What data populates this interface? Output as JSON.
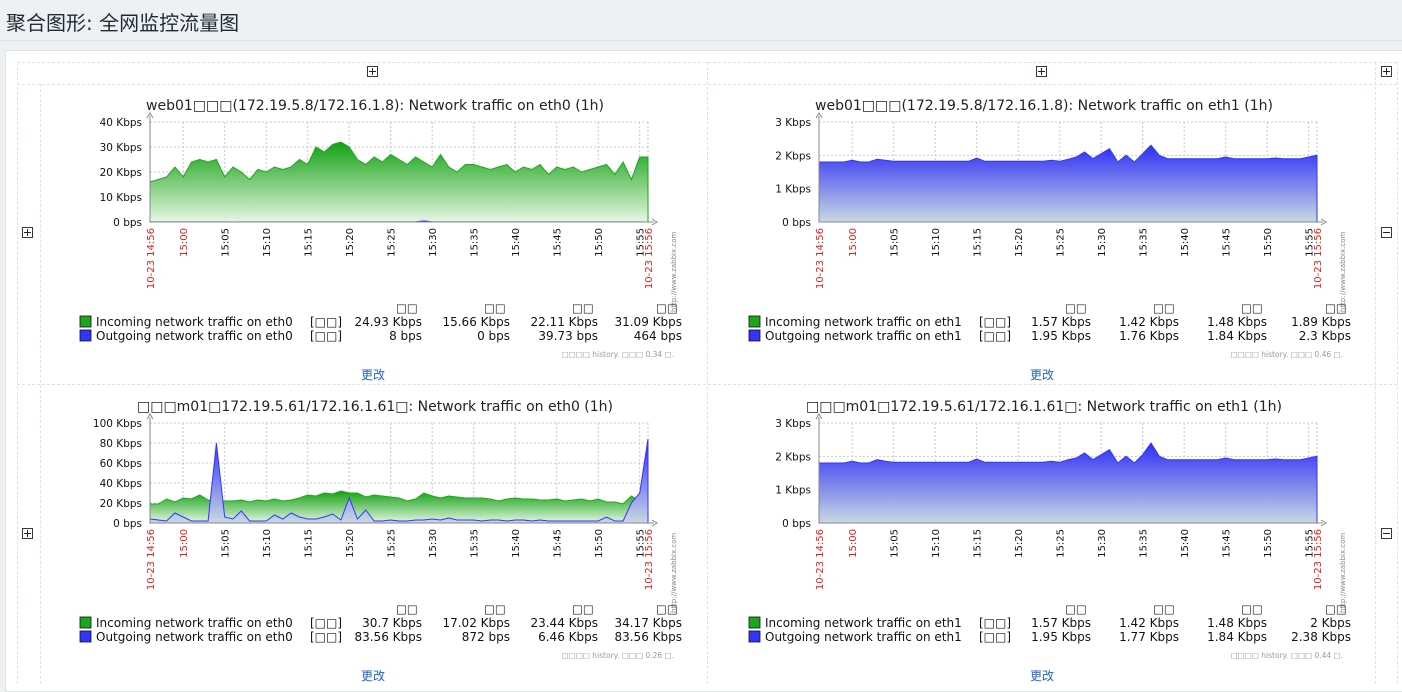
{
  "page": {
    "title": "聚合图形: 全网监控流量图"
  },
  "graphs": [
    {
      "title": "web01□□□(172.19.5.8/172.16.1.8): Network traffic on eth0 (1h)",
      "y_ticks": [
        "40 Kbps",
        "30 Kbps",
        "20 Kbps",
        "10 Kbps",
        "0 bps"
      ],
      "x_ticks": [
        "15:05",
        "15:10",
        "15:15",
        "15:20",
        "15:25",
        "15:30",
        "15:35",
        "15:40",
        "15:45",
        "15:50",
        "15:55"
      ],
      "x_start": "10-23 14:56",
      "x_first": "15:00",
      "x_end": "10-23 15:56",
      "watermark": "http://www.zabbix.com",
      "legend_header": [
        "□□",
        "□□",
        "□□",
        "□□"
      ],
      "legend": [
        {
          "name": "Incoming network traffic on eth0",
          "func": "[□□]",
          "last": "24.93 Kbps",
          "min": "15.66 Kbps",
          "avg": "22.11 Kbps",
          "max": "31.09 Kbps",
          "color": "#1aa81a"
        },
        {
          "name": "Outgoing network traffic on eth0",
          "func": "[□□]",
          "last": "8 bps",
          "min": "0 bps",
          "avg": "39.73 bps",
          "max": "464 bps",
          "color": "#3333ff"
        }
      ],
      "footnote": "□□□□ history. □□□ 0.34 □.",
      "edit": "更改"
    },
    {
      "title": "web01□□□(172.19.5.8/172.16.1.8): Network traffic on eth1 (1h)",
      "y_ticks": [
        "3 Kbps",
        "2 Kbps",
        "1 Kbps",
        "0 bps"
      ],
      "x_ticks": [
        "15:05",
        "15:10",
        "15:15",
        "15:20",
        "15:25",
        "15:30",
        "15:35",
        "15:40",
        "15:45",
        "15:50",
        "15:55"
      ],
      "x_start": "10-23 14:56",
      "x_first": "15:00",
      "x_end": "10-23 15:56",
      "watermark": "http://www.zabbix.com",
      "legend_header": [
        "□□",
        "□□",
        "□□",
        "□□"
      ],
      "legend": [
        {
          "name": "Incoming network traffic on eth1",
          "func": "[□□]",
          "last": "1.57 Kbps",
          "min": "1.42 Kbps",
          "avg": "1.48 Kbps",
          "max": "1.89 Kbps",
          "color": "#1aa81a"
        },
        {
          "name": "Outgoing network traffic on eth1",
          "func": "[□□]",
          "last": "1.95 Kbps",
          "min": "1.76 Kbps",
          "avg": "1.84 Kbps",
          "max": "2.3 Kbps",
          "color": "#3333ff"
        }
      ],
      "footnote": "□□□□ history. □□□ 0.46 □.",
      "edit": "更改"
    },
    {
      "title": "□□□m01□172.19.5.61/172.16.1.61□: Network traffic on eth0 (1h)",
      "y_ticks": [
        "100 Kbps",
        "80 Kbps",
        "60 Kbps",
        "40 Kbps",
        "20 Kbps",
        "0 bps"
      ],
      "x_ticks": [
        "15:05",
        "15:10",
        "15:15",
        "15:20",
        "15:25",
        "15:30",
        "15:35",
        "15:40",
        "15:45",
        "15:50",
        "15:55"
      ],
      "x_start": "10-23 14:56",
      "x_first": "15:00",
      "x_end": "10-23 15:56",
      "watermark": "http://www.zabbix.com",
      "legend_header": [
        "□□",
        "□□",
        "□□",
        "□□"
      ],
      "legend": [
        {
          "name": "Incoming network traffic on eth0",
          "func": "[□□]",
          "last": "30.7 Kbps",
          "min": "17.02 Kbps",
          "avg": "23.44 Kbps",
          "max": "34.17 Kbps",
          "color": "#1aa81a"
        },
        {
          "name": "Outgoing network traffic on eth0",
          "func": "[□□]",
          "last": "83.56 Kbps",
          "min": "872 bps",
          "avg": "6.46 Kbps",
          "max": "83.56 Kbps",
          "color": "#3333ff"
        }
      ],
      "footnote": "□□□□ history. □□□ 0.26 □.",
      "edit": "更改"
    },
    {
      "title": "□□□m01□172.19.5.61/172.16.1.61□: Network traffic on eth1 (1h)",
      "y_ticks": [
        "3 Kbps",
        "2 Kbps",
        "1 Kbps",
        "0 bps"
      ],
      "x_ticks": [
        "15:05",
        "15:10",
        "15:15",
        "15:20",
        "15:25",
        "15:30",
        "15:35",
        "15:40",
        "15:45",
        "15:50",
        "15:55"
      ],
      "x_start": "10-23 14:56",
      "x_first": "15:00",
      "x_end": "10-23 15:56",
      "watermark": "http://www.zabbix.com",
      "legend_header": [
        "□□",
        "□□",
        "□□",
        "□□"
      ],
      "legend": [
        {
          "name": "Incoming network traffic on eth1",
          "func": "[□□]",
          "last": "1.57 Kbps",
          "min": "1.42 Kbps",
          "avg": "1.48 Kbps",
          "max": "2 Kbps",
          "color": "#1aa81a"
        },
        {
          "name": "Outgoing network traffic on eth1",
          "func": "[□□]",
          "last": "1.95 Kbps",
          "min": "1.77 Kbps",
          "avg": "1.84 Kbps",
          "max": "2.38 Kbps",
          "color": "#3333ff"
        }
      ],
      "footnote": "□□□□ history. □□□ 0.44 □.",
      "edit": "更改"
    }
  ],
  "chart_data": [
    {
      "type": "area",
      "title": "web01□□□(172.19.5.8/172.16.1.8): Network traffic on eth0 (1h)",
      "ylim": [
        0,
        40
      ],
      "y_unit": "Kbps",
      "x_range": [
        "14:56",
        "15:56"
      ],
      "grid": true,
      "x": [
        "14:56",
        "14:57",
        "14:58",
        "14:59",
        "15:00",
        "15:01",
        "15:02",
        "15:03",
        "15:04",
        "15:05",
        "15:06",
        "15:07",
        "15:08",
        "15:09",
        "15:10",
        "15:11",
        "15:12",
        "15:13",
        "15:14",
        "15:15",
        "15:16",
        "15:17",
        "15:18",
        "15:19",
        "15:20",
        "15:21",
        "15:22",
        "15:23",
        "15:24",
        "15:25",
        "15:26",
        "15:27",
        "15:28",
        "15:29",
        "15:30",
        "15:31",
        "15:32",
        "15:33",
        "15:34",
        "15:35",
        "15:36",
        "15:37",
        "15:38",
        "15:39",
        "15:40",
        "15:41",
        "15:42",
        "15:43",
        "15:44",
        "15:45",
        "15:46",
        "15:47",
        "15:48",
        "15:49",
        "15:50",
        "15:51",
        "15:52",
        "15:53",
        "15:54",
        "15:55",
        "15:56"
      ],
      "series": [
        {
          "name": "Incoming network traffic on eth0",
          "color": "#1aa81a",
          "values": [
            16,
            17,
            18,
            22,
            18,
            24,
            25,
            24,
            25,
            18,
            22,
            20,
            17,
            21,
            20,
            22,
            21,
            22,
            25,
            23,
            30,
            28,
            31,
            32,
            30,
            25,
            23,
            26,
            24,
            27,
            25,
            23,
            26,
            24,
            22,
            27,
            22,
            20,
            23,
            23,
            22,
            21,
            22,
            23,
            20,
            22,
            21,
            23,
            19,
            22,
            21,
            22,
            20,
            21,
            22,
            23,
            19,
            24,
            17,
            26,
            26
          ]
        },
        {
          "name": "Outgoing network traffic on eth0",
          "color": "#3333ff",
          "values": [
            0.05,
            0.05,
            0.05,
            0.05,
            0.05,
            0.05,
            0.05,
            0.05,
            0.05,
            0.05,
            0,
            0.05,
            0.05,
            0.05,
            0.05,
            0.05,
            0.05,
            0.05,
            0.05,
            0.05,
            0.05,
            0.05,
            0.05,
            0.05,
            0.05,
            0.05,
            0.05,
            0.05,
            0.05,
            0.05,
            0.05,
            0.05,
            0.05,
            0.45,
            0.05,
            0.05,
            0.05,
            0.05,
            0.05,
            0.05,
            0.05,
            0.05,
            0.05,
            0.05,
            0.05,
            0.05,
            0.05,
            0.05,
            0.05,
            0.05,
            0.05,
            0.05,
            0.05,
            0.05,
            0.05,
            0.05,
            0.05,
            0.05,
            0.05,
            0.05,
            0.01
          ]
        }
      ]
    },
    {
      "type": "area",
      "title": "web01□□□(172.19.5.8/172.16.1.8): Network traffic on eth1 (1h)",
      "ylim": [
        0,
        3
      ],
      "y_unit": "Kbps",
      "x_range": [
        "14:56",
        "15:56"
      ],
      "grid": true,
      "x": [
        "14:56",
        "14:57",
        "14:58",
        "14:59",
        "15:00",
        "15:01",
        "15:02",
        "15:03",
        "15:04",
        "15:05",
        "15:06",
        "15:07",
        "15:08",
        "15:09",
        "15:10",
        "15:11",
        "15:12",
        "15:13",
        "15:14",
        "15:15",
        "15:16",
        "15:17",
        "15:18",
        "15:19",
        "15:20",
        "15:21",
        "15:22",
        "15:23",
        "15:24",
        "15:25",
        "15:26",
        "15:27",
        "15:28",
        "15:29",
        "15:30",
        "15:31",
        "15:32",
        "15:33",
        "15:34",
        "15:35",
        "15:36",
        "15:37",
        "15:38",
        "15:39",
        "15:40",
        "15:41",
        "15:42",
        "15:43",
        "15:44",
        "15:45",
        "15:46",
        "15:47",
        "15:48",
        "15:49",
        "15:50",
        "15:51",
        "15:52",
        "15:53",
        "15:54",
        "15:55",
        "15:56"
      ],
      "series": [
        {
          "name": "Incoming network traffic on eth1",
          "color": "#1aa81a",
          "values": [
            1.45,
            1.45,
            1.45,
            1.45,
            1.5,
            1.45,
            1.45,
            1.5,
            1.45,
            1.45,
            1.45,
            1.45,
            1.45,
            1.45,
            1.45,
            1.45,
            1.45,
            1.45,
            1.45,
            1.5,
            1.45,
            1.45,
            1.45,
            1.45,
            1.45,
            1.45,
            1.45,
            1.45,
            1.5,
            1.5,
            1.5,
            1.5,
            1.6,
            1.55,
            1.6,
            1.55,
            1.6,
            1.55,
            1.6,
            1.7,
            1.55,
            1.5,
            1.5,
            1.5,
            1.5,
            1.5,
            1.5,
            1.5,
            1.5,
            1.55,
            1.5,
            1.5,
            1.5,
            1.5,
            1.5,
            1.5,
            1.5,
            1.5,
            1.5,
            1.55,
            1.57
          ]
        },
        {
          "name": "Outgoing network traffic on eth1",
          "color": "#3333ff",
          "values": [
            1.8,
            1.8,
            1.8,
            1.8,
            1.85,
            1.8,
            1.8,
            1.88,
            1.85,
            1.82,
            1.82,
            1.82,
            1.82,
            1.82,
            1.82,
            1.82,
            1.82,
            1.82,
            1.82,
            1.92,
            1.82,
            1.82,
            1.82,
            1.82,
            1.82,
            1.82,
            1.82,
            1.82,
            1.85,
            1.82,
            1.88,
            1.95,
            2.1,
            1.9,
            2.05,
            2.2,
            1.8,
            2.0,
            1.8,
            2.05,
            2.3,
            2.0,
            1.9,
            1.9,
            1.9,
            1.9,
            1.9,
            1.9,
            1.9,
            1.95,
            1.9,
            1.9,
            1.9,
            1.9,
            1.9,
            1.92,
            1.9,
            1.9,
            1.9,
            1.95,
            2.0
          ]
        }
      ]
    },
    {
      "type": "area",
      "title": "□□□m01□172.19.5.61/172.16.1.61□: Network traffic on eth0 (1h)",
      "ylim": [
        0,
        100
      ],
      "y_unit": "Kbps",
      "x_range": [
        "14:56",
        "15:56"
      ],
      "grid": true,
      "x": [
        "14:56",
        "14:57",
        "14:58",
        "14:59",
        "15:00",
        "15:01",
        "15:02",
        "15:03",
        "15:04",
        "15:05",
        "15:06",
        "15:07",
        "15:08",
        "15:09",
        "15:10",
        "15:11",
        "15:12",
        "15:13",
        "15:14",
        "15:15",
        "15:16",
        "15:17",
        "15:18",
        "15:19",
        "15:20",
        "15:21",
        "15:22",
        "15:23",
        "15:24",
        "15:25",
        "15:26",
        "15:27",
        "15:28",
        "15:29",
        "15:30",
        "15:31",
        "15:32",
        "15:33",
        "15:34",
        "15:35",
        "15:36",
        "15:37",
        "15:38",
        "15:39",
        "15:40",
        "15:41",
        "15:42",
        "15:43",
        "15:44",
        "15:45",
        "15:46",
        "15:47",
        "15:48",
        "15:49",
        "15:50",
        "15:51",
        "15:52",
        "15:53",
        "15:54",
        "15:55",
        "15:56"
      ],
      "series": [
        {
          "name": "Incoming network traffic on eth0",
          "color": "#1aa81a",
          "values": [
            19,
            19,
            24,
            21,
            25,
            24,
            28,
            23,
            21,
            22,
            22,
            23,
            21,
            23,
            22,
            24,
            22,
            23,
            25,
            28,
            27,
            30,
            29,
            32,
            30,
            30,
            26,
            28,
            27,
            26,
            25,
            22,
            24,
            30,
            27,
            25,
            27,
            26,
            25,
            25,
            25,
            24,
            22,
            24,
            25,
            24,
            24,
            23,
            23,
            24,
            22,
            23,
            24,
            22,
            24,
            21,
            21,
            19,
            27,
            22,
            31
          ]
        },
        {
          "name": "Outgoing network traffic on eth0",
          "color": "#3333ff",
          "values": [
            4,
            3,
            2,
            10,
            6,
            2,
            2,
            2,
            80,
            6,
            4,
            12,
            2,
            2,
            2,
            8,
            4,
            10,
            6,
            4,
            4,
            6,
            9,
            3,
            25,
            4,
            13,
            2,
            2,
            3,
            2,
            2,
            3,
            3,
            4,
            3,
            5,
            3,
            3,
            3,
            2,
            3,
            3,
            2,
            3,
            3,
            2,
            3,
            2,
            2,
            2,
            2,
            2,
            2,
            2,
            6,
            2,
            2,
            20,
            30,
            84
          ]
        }
      ]
    },
    {
      "type": "area",
      "title": "□□□m01□172.19.5.61/172.16.1.61□: Network traffic on eth1 (1h)",
      "ylim": [
        0,
        3
      ],
      "y_unit": "Kbps",
      "x_range": [
        "14:56",
        "15:56"
      ],
      "grid": true,
      "x": [
        "14:56",
        "14:57",
        "14:58",
        "14:59",
        "15:00",
        "15:01",
        "15:02",
        "15:03",
        "15:04",
        "15:05",
        "15:06",
        "15:07",
        "15:08",
        "15:09",
        "15:10",
        "15:11",
        "15:12",
        "15:13",
        "15:14",
        "15:15",
        "15:16",
        "15:17",
        "15:18",
        "15:19",
        "15:20",
        "15:21",
        "15:22",
        "15:23",
        "15:24",
        "15:25",
        "15:26",
        "15:27",
        "15:28",
        "15:29",
        "15:30",
        "15:31",
        "15:32",
        "15:33",
        "15:34",
        "15:35",
        "15:36",
        "15:37",
        "15:38",
        "15:39",
        "15:40",
        "15:41",
        "15:42",
        "15:43",
        "15:44",
        "15:45",
        "15:46",
        "15:47",
        "15:48",
        "15:49",
        "15:50",
        "15:51",
        "15:52",
        "15:53",
        "15:54",
        "15:55",
        "15:56"
      ],
      "series": [
        {
          "name": "Incoming network traffic on eth1",
          "color": "#1aa81a",
          "values": [
            1.45,
            1.45,
            1.45,
            1.45,
            1.5,
            1.45,
            1.45,
            1.5,
            1.45,
            1.45,
            1.45,
            1.45,
            1.45,
            1.45,
            1.45,
            1.45,
            1.45,
            1.45,
            1.45,
            1.5,
            1.45,
            1.45,
            1.45,
            1.45,
            1.45,
            1.45,
            1.45,
            1.45,
            1.5,
            1.5,
            1.5,
            1.55,
            1.6,
            1.55,
            1.6,
            1.55,
            1.6,
            1.55,
            1.6,
            1.7,
            1.55,
            1.5,
            1.5,
            1.5,
            1.5,
            1.5,
            1.5,
            1.5,
            1.5,
            1.55,
            1.5,
            1.5,
            1.5,
            1.5,
            1.5,
            1.5,
            1.5,
            1.5,
            1.5,
            1.55,
            1.57
          ]
        },
        {
          "name": "Outgoing network traffic on eth1",
          "color": "#3333ff",
          "values": [
            1.8,
            1.8,
            1.8,
            1.8,
            1.85,
            1.8,
            1.8,
            1.9,
            1.85,
            1.82,
            1.82,
            1.82,
            1.82,
            1.82,
            1.82,
            1.82,
            1.82,
            1.82,
            1.82,
            1.92,
            1.82,
            1.82,
            1.82,
            1.82,
            1.82,
            1.82,
            1.82,
            1.82,
            1.85,
            1.82,
            1.9,
            1.95,
            2.1,
            1.9,
            2.05,
            2.2,
            1.8,
            2.0,
            1.8,
            2.05,
            2.4,
            2.0,
            1.9,
            1.9,
            1.9,
            1.9,
            1.9,
            1.9,
            1.9,
            1.95,
            1.9,
            1.9,
            1.9,
            1.9,
            1.9,
            1.92,
            1.9,
            1.9,
            1.9,
            1.95,
            2.0
          ]
        }
      ]
    }
  ]
}
